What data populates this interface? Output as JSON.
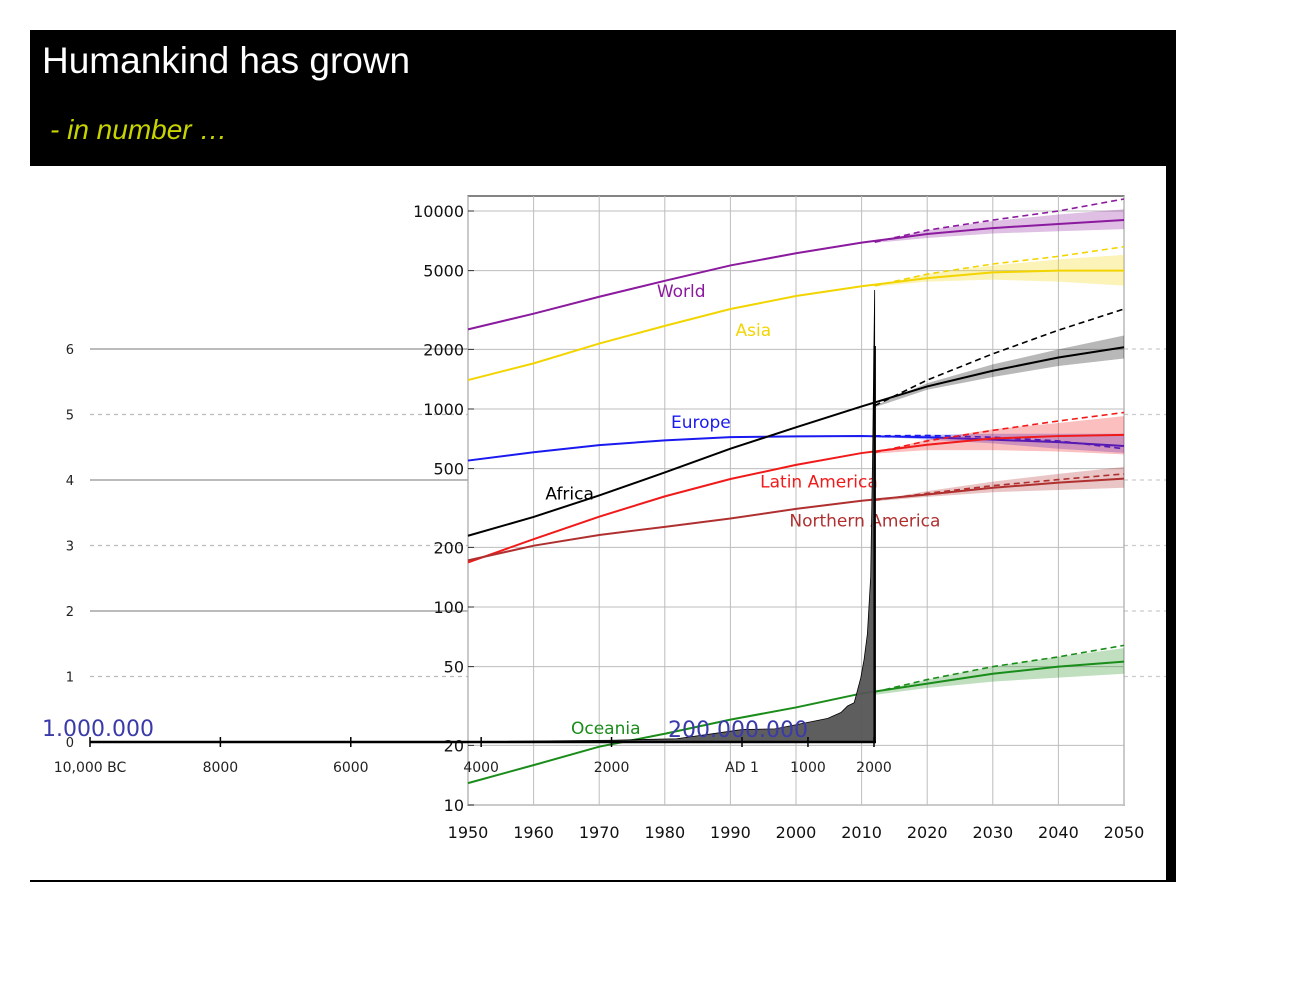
{
  "slide": {
    "title": "Humankind has grown",
    "subtitle": "- in number …",
    "subtitle_color": "#c8d400"
  },
  "chart_data": [
    {
      "type": "line",
      "title": "",
      "xlabel": "",
      "ylabel": "",
      "yscale": "log",
      "xlim": [
        1950,
        2050
      ],
      "ylim": [
        10,
        12000
      ],
      "x_ticks": [
        "1950",
        "1960",
        "1970",
        "1980",
        "1990",
        "2000",
        "2010",
        "2020",
        "2030",
        "2040",
        "2050"
      ],
      "y_ticks": [
        "10",
        "20",
        "50",
        "100",
        "200",
        "500",
        "1000",
        "2000",
        "5000",
        "10000"
      ],
      "projection_start": 2012,
      "series": [
        {
          "name": "World",
          "color": "#8b1a9e",
          "x": [
            1950,
            1960,
            1970,
            1980,
            1990,
            2000,
            2010,
            2020,
            2030,
            2040,
            2050
          ],
          "y": [
            2525,
            3030,
            3690,
            4440,
            5310,
            6120,
            6920,
            7650,
            8200,
            8600,
            9000
          ],
          "band_low": [
            6900,
            7300,
            7700,
            7900,
            8100
          ],
          "band_high": [
            6960,
            8000,
            8900,
            9600,
            10200
          ],
          "high_variant": [
            6960,
            8000,
            9000,
            10000,
            11500
          ]
        },
        {
          "name": "Asia",
          "color": "#f2d500",
          "x": [
            1950,
            1960,
            1970,
            1980,
            1990,
            2000,
            2010,
            2020,
            2030,
            2040,
            2050
          ],
          "y": [
            1400,
            1700,
            2140,
            2630,
            3200,
            3720,
            4170,
            4580,
            4900,
            5000,
            5000
          ],
          "band_low": [
            4150,
            4400,
            4500,
            4400,
            4200
          ],
          "band_high": [
            4190,
            4800,
            5300,
            5700,
            6000
          ],
          "high_variant": [
            4190,
            4800,
            5400,
            5900,
            6600
          ]
        },
        {
          "name": "Europe",
          "color": "#1a1af0",
          "x": [
            1950,
            1960,
            1970,
            1980,
            1990,
            2000,
            2010,
            2020,
            2030,
            2040,
            2050
          ],
          "y": [
            549,
            605,
            657,
            694,
            721,
            727,
            730,
            720,
            700,
            680,
            650
          ],
          "band_low": [
            728,
            700,
            670,
            630,
            600
          ],
          "band_high": [
            732,
            740,
            750,
            750,
            750
          ],
          "high_variant": [
            732,
            735,
            720,
            690,
            630
          ]
        },
        {
          "name": "Africa",
          "color": "#000000",
          "x": [
            1950,
            1960,
            1970,
            1980,
            1990,
            2000,
            2010,
            2020,
            2030,
            2040,
            2050
          ],
          "y": [
            229,
            285,
            366,
            478,
            630,
            808,
            1030,
            1300,
            1560,
            1820,
            2050
          ],
          "band_low": [
            1020,
            1250,
            1450,
            1650,
            1800
          ],
          "band_high": [
            1040,
            1350,
            1680,
            2000,
            2350
          ],
          "high_variant": [
            1040,
            1400,
            1900,
            2500,
            3200
          ]
        },
        {
          "name": "Latin America",
          "color": "#f01a1a",
          "x": [
            1950,
            1960,
            1970,
            1980,
            1990,
            2000,
            2010,
            2020,
            2030,
            2040,
            2050
          ],
          "y": [
            168,
            220,
            286,
            362,
            443,
            522,
            599,
            660,
            710,
            730,
            740
          ],
          "band_low": [
            595,
            620,
            620,
            610,
            590
          ],
          "band_high": [
            603,
            700,
            790,
            850,
            920
          ],
          "high_variant": [
            603,
            690,
            780,
            870,
            960
          ]
        },
        {
          "name": "Northern America",
          "color": "#b03030",
          "x": [
            1950,
            1960,
            1970,
            1980,
            1990,
            2000,
            2010,
            2020,
            2030,
            2040,
            2050
          ],
          "y": [
            172,
            204,
            231,
            254,
            280,
            313,
            344,
            370,
            400,
            425,
            445
          ],
          "band_low": [
            342,
            360,
            380,
            390,
            400
          ],
          "band_high": [
            346,
            385,
            430,
            470,
            510
          ],
          "high_variant": [
            346,
            375,
            410,
            440,
            470
          ]
        },
        {
          "name": "Oceania",
          "color": "#1a8c1a",
          "x": [
            1950,
            1960,
            1970,
            1980,
            1990,
            2000,
            2010,
            2020,
            2030,
            2040,
            2050
          ],
          "y": [
            12.9,
            15.9,
            19.7,
            22.9,
            27,
            31.1,
            36.6,
            41,
            46,
            50,
            53
          ],
          "band_low": [
            36,
            39,
            42,
            44,
            46
          ],
          "band_high": [
            37.2,
            43,
            50,
            56,
            62
          ],
          "high_variant": [
            37.2,
            43,
            50,
            56,
            64
          ]
        }
      ]
    },
    {
      "type": "area",
      "title": "",
      "ylabel": "",
      "x_tick_labels": [
        "10,000 BC",
        "8000",
        "6000",
        "4000",
        "2000",
        "AD 1",
        "1000",
        "2000"
      ],
      "y_tick_labels": [
        "0",
        "1",
        "2",
        "3",
        "4",
        "5",
        "6"
      ],
      "ylim": [
        0,
        6.5
      ],
      "series": [
        {
          "name": "",
          "color": "#555555",
          "x": [
            -10000,
            -4000,
            -2000,
            -1000,
            0,
            500,
            1000,
            1300,
            1500,
            1600,
            1700,
            1800,
            1850,
            1900,
            1950,
            1980,
            2000,
            2010
          ],
          "y": [
            0.004,
            0.007,
            0.027,
            0.05,
            0.19,
            0.2,
            0.3,
            0.36,
            0.45,
            0.55,
            0.6,
            0.98,
            1.26,
            1.65,
            2.52,
            4.44,
            6.12,
            6.9
          ]
        }
      ],
      "annotations": [
        "1.000.000",
        "200.000.000"
      ]
    }
  ]
}
